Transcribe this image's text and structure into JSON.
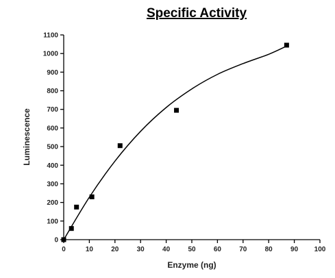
{
  "chart_data": {
    "type": "scatter",
    "title": "Specific Activity",
    "xlabel": "Enzyme (ng)",
    "ylabel": "Luminescence",
    "xlim": [
      0,
      100
    ],
    "ylim": [
      0,
      1100
    ],
    "xticks": [
      0,
      10,
      20,
      30,
      40,
      50,
      60,
      70,
      80,
      90,
      100
    ],
    "yticks": [
      0,
      100,
      200,
      300,
      400,
      500,
      600,
      700,
      800,
      900,
      1000,
      1100
    ],
    "grid": false,
    "legend": "none",
    "series": [
      {
        "marker": "square",
        "color": "#000000",
        "x": [
          0,
          3,
          5,
          11,
          22,
          44,
          87
        ],
        "y": [
          0,
          60,
          175,
          230,
          505,
          695,
          1045
        ]
      }
    ],
    "fit_curve": {
      "x": [
        0,
        10,
        20,
        30,
        40,
        50,
        60,
        70,
        80,
        87
      ],
      "y": [
        0,
        228,
        422,
        582,
        710,
        810,
        888,
        946,
        996,
        1040
      ]
    }
  }
}
